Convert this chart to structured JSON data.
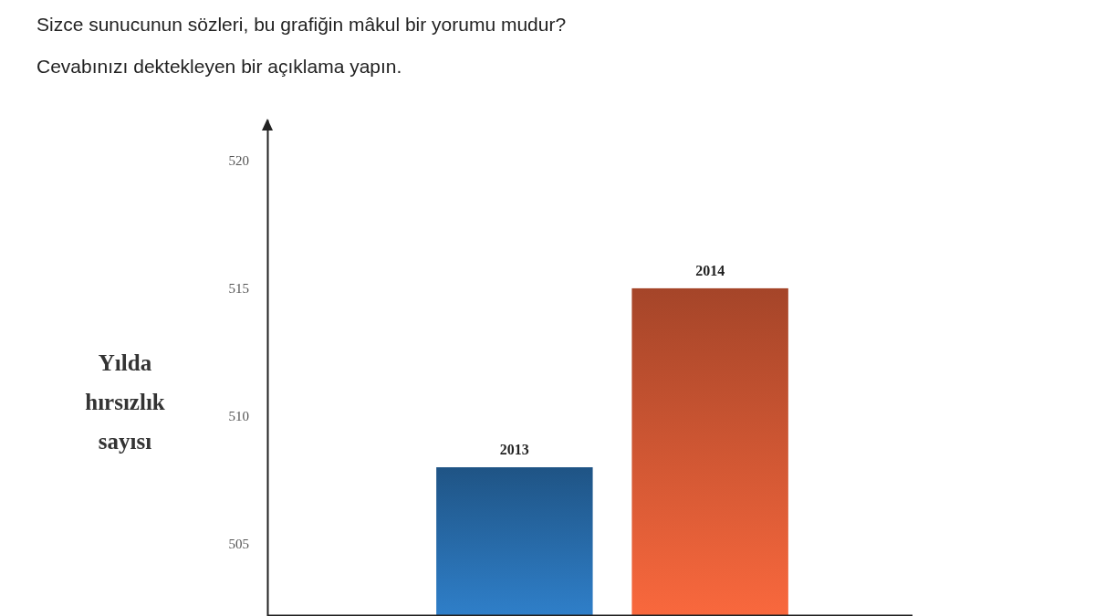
{
  "chart_data": {
    "type": "bar",
    "title": "Sizce sunucunun sözleri, bu grafiğin mâkul bir yorumu mudur?",
    "subtitle": "Cevabınızı dektekleyen bir açıklama yapın.",
    "ylabel": "Yılda hırsızlık sayısı",
    "categories": [
      "2013",
      "2014"
    ],
    "values": [
      508,
      515
    ],
    "colors": [
      "#2b74b8",
      "#e45f38"
    ],
    "ylim": [
      502.2,
      521.6
    ],
    "yticks": [
      505,
      510,
      515,
      520
    ]
  }
}
